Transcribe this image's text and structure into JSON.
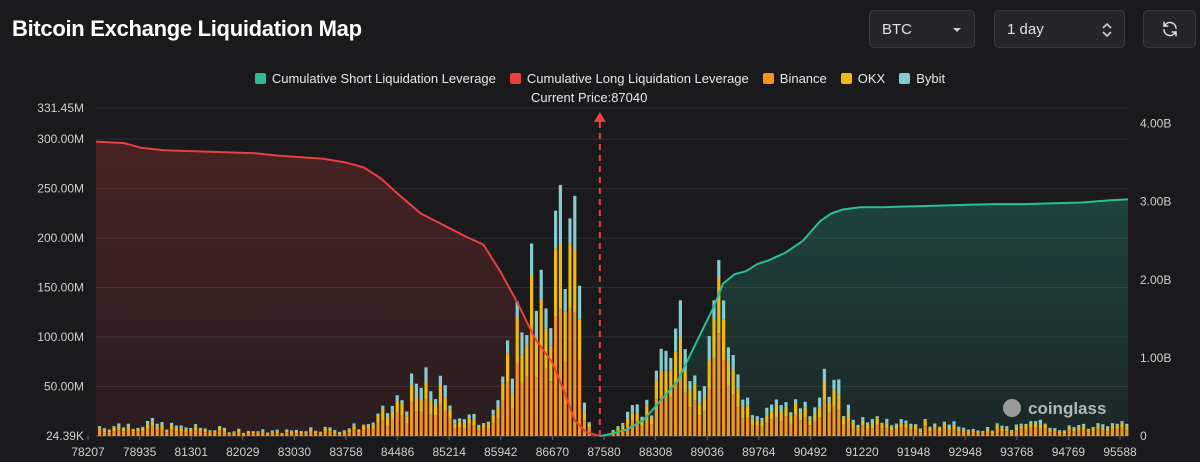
{
  "header": {
    "title": "Bitcoin Exchange Liquidation Map",
    "coin_select": "BTC",
    "range_select": "1 day",
    "refresh_icon": "refresh-icon"
  },
  "watermark": "coinglass",
  "colors": {
    "short_cum": "#2bbd9a",
    "long_cum": "#e8413f",
    "binance": "#f7931a",
    "okx": "#f0b90b",
    "bybit": "#84ccd0"
  },
  "chart_data": {
    "type": "bar",
    "legend": [
      {
        "name": "Cumulative Short Liquidation Leverage",
        "color": "#2bbd9a"
      },
      {
        "name": "Cumulative Long Liquidation Leverage",
        "color": "#e8413f"
      },
      {
        "name": "Binance",
        "color": "#f7931a"
      },
      {
        "name": "OKX",
        "color": "#f0b90b"
      },
      {
        "name": "Bybit",
        "color": "#84ccd0"
      }
    ],
    "current_price_label": "Current Price:87040",
    "current_price": 87040,
    "x_range": [
      78207,
      96300
    ],
    "x_ticks": [
      "78207",
      "78935",
      "81301",
      "82029",
      "83030",
      "83758",
      "84486",
      "85214",
      "85942",
      "86670",
      "87580",
      "88308",
      "89036",
      "89764",
      "90492",
      "91220",
      "91948",
      "92948",
      "93768",
      "94769",
      "95588"
    ],
    "y_left": {
      "min": 0,
      "max": 331.45,
      "ticks": [
        {
          "v": 0,
          "label": "24.39K"
        },
        {
          "v": 50,
          "label": "50.00M"
        },
        {
          "v": 100,
          "label": "100.00M"
        },
        {
          "v": 150,
          "label": "150.00M"
        },
        {
          "v": 200,
          "label": "200.00M"
        },
        {
          "v": 250,
          "label": "250.00M"
        },
        {
          "v": 300,
          "label": "300.00M"
        },
        {
          "v": 331.45,
          "label": "331.45M"
        }
      ]
    },
    "y_right": {
      "min": 0,
      "max": 4.2,
      "ticks": [
        {
          "v": 0,
          "label": "0"
        },
        {
          "v": 1,
          "label": "1.00B"
        },
        {
          "v": 2,
          "label": "2.00B"
        },
        {
          "v": 3,
          "label": "3.00B"
        },
        {
          "v": 4,
          "label": "4.00B"
        }
      ]
    },
    "bar_peaks": [
      [
        78207,
        12
      ],
      [
        78700,
        14
      ],
      [
        79100,
        16
      ],
      [
        79500,
        12
      ],
      [
        80000,
        10
      ],
      [
        80500,
        8
      ],
      [
        81000,
        6
      ],
      [
        81500,
        6
      ],
      [
        82000,
        10
      ],
      [
        82500,
        8
      ],
      [
        83000,
        16
      ],
      [
        83300,
        30
      ],
      [
        83600,
        50
      ],
      [
        83900,
        58
      ],
      [
        84100,
        62
      ],
      [
        84300,
        48
      ],
      [
        84500,
        30
      ],
      [
        84700,
        22
      ],
      [
        84900,
        18
      ],
      [
        85100,
        34
      ],
      [
        85300,
        50
      ],
      [
        85500,
        120
      ],
      [
        85650,
        160
      ],
      [
        85800,
        195
      ],
      [
        85942,
        120
      ],
      [
        86050,
        180
      ],
      [
        86150,
        200
      ],
      [
        86250,
        230
      ],
      [
        86350,
        300
      ],
      [
        86500,
        210
      ],
      [
        86600,
        225
      ],
      [
        86700,
        70
      ],
      [
        86850,
        10
      ],
      [
        87040,
        2
      ],
      [
        87200,
        8
      ],
      [
        87400,
        20
      ],
      [
        87600,
        40
      ],
      [
        87800,
        25
      ],
      [
        88000,
        60
      ],
      [
        88200,
        100
      ],
      [
        88400,
        130
      ],
      [
        88500,
        170
      ],
      [
        88600,
        80
      ],
      [
        88800,
        60
      ],
      [
        89036,
        215
      ],
      [
        89150,
        210
      ],
      [
        89300,
        120
      ],
      [
        89400,
        60
      ],
      [
        89600,
        40
      ],
      [
        89764,
        40
      ],
      [
        90000,
        42
      ],
      [
        90200,
        30
      ],
      [
        90492,
        40
      ],
      [
        90700,
        28
      ],
      [
        90900,
        50
      ],
      [
        91000,
        65
      ],
      [
        91100,
        58
      ],
      [
        91220,
        52
      ],
      [
        91400,
        30
      ],
      [
        91600,
        22
      ],
      [
        91948,
        20
      ],
      [
        92200,
        14
      ],
      [
        92500,
        18
      ],
      [
        92948,
        14
      ],
      [
        93300,
        12
      ],
      [
        93768,
        10
      ],
      [
        94200,
        12
      ],
      [
        94769,
        14
      ],
      [
        95200,
        10
      ],
      [
        95588,
        12
      ],
      [
        96000,
        20
      ]
    ],
    "long_cum_curve": [
      [
        78207,
        3.77
      ],
      [
        78700,
        3.75
      ],
      [
        79000,
        3.69
      ],
      [
        79400,
        3.66
      ],
      [
        79800,
        3.65
      ],
      [
        80200,
        3.64
      ],
      [
        80600,
        3.63
      ],
      [
        81000,
        3.62
      ],
      [
        81400,
        3.59
      ],
      [
        81800,
        3.57
      ],
      [
        82200,
        3.55
      ],
      [
        82600,
        3.5
      ],
      [
        82900,
        3.44
      ],
      [
        83200,
        3.3
      ],
      [
        83500,
        3.1
      ],
      [
        83900,
        2.85
      ],
      [
        84300,
        2.7
      ],
      [
        84700,
        2.55
      ],
      [
        85000,
        2.45
      ],
      [
        85300,
        2.1
      ],
      [
        85600,
        1.7
      ],
      [
        85900,
        1.25
      ],
      [
        86200,
        0.95
      ],
      [
        86400,
        0.6
      ],
      [
        86600,
        0.2
      ],
      [
        86800,
        0.05
      ],
      [
        87040,
        0
      ]
    ],
    "short_cum_curve": [
      [
        87040,
        0
      ],
      [
        87200,
        0.02
      ],
      [
        87500,
        0.08
      ],
      [
        87800,
        0.2
      ],
      [
        88100,
        0.45
      ],
      [
        88400,
        0.7
      ],
      [
        88600,
        1.0
      ],
      [
        88800,
        1.3
      ],
      [
        89036,
        1.65
      ],
      [
        89200,
        1.95
      ],
      [
        89400,
        2.07
      ],
      [
        89600,
        2.11
      ],
      [
        89800,
        2.2
      ],
      [
        90000,
        2.25
      ],
      [
        90300,
        2.35
      ],
      [
        90600,
        2.5
      ],
      [
        90900,
        2.75
      ],
      [
        91100,
        2.85
      ],
      [
        91300,
        2.9
      ],
      [
        91600,
        2.93
      ],
      [
        92000,
        2.93
      ],
      [
        92500,
        2.94
      ],
      [
        93000,
        2.95
      ],
      [
        93500,
        2.96
      ],
      [
        94000,
        2.97
      ],
      [
        94500,
        2.97
      ],
      [
        95000,
        2.98
      ],
      [
        95500,
        2.99
      ],
      [
        96000,
        3.02
      ],
      [
        96300,
        3.03
      ]
    ]
  }
}
